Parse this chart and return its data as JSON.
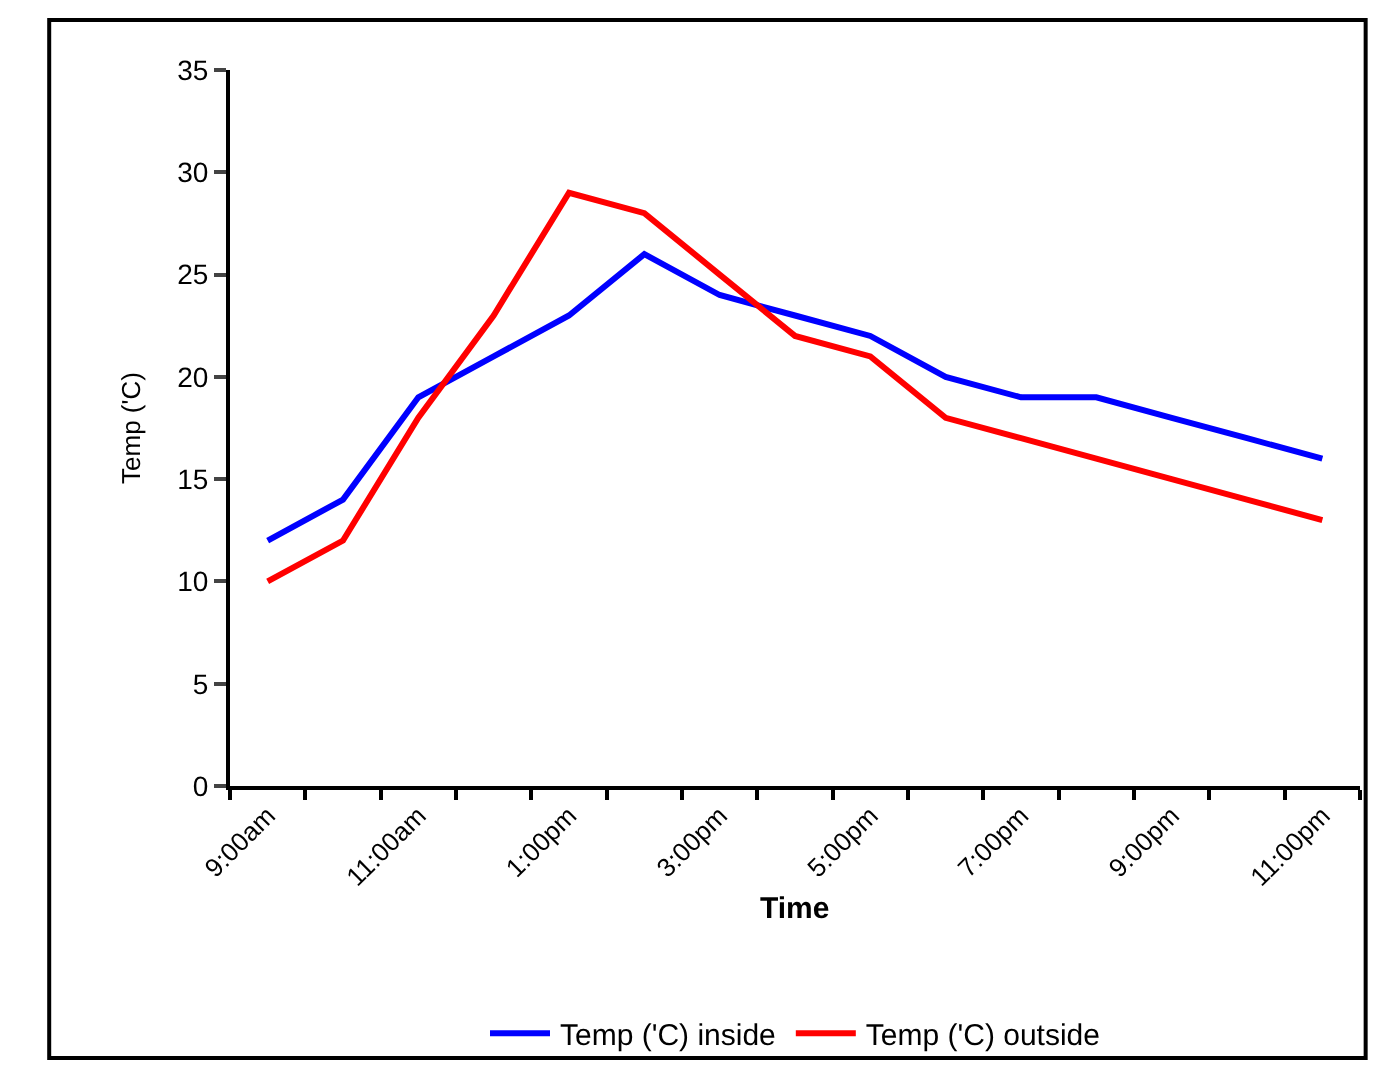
{
  "chart_data": {
    "type": "line",
    "xlabel": "Time",
    "ylabel": "Temp ('C)",
    "categories": [
      "9:00am",
      null,
      "11:00am",
      null,
      "1:00pm",
      null,
      "3:00pm",
      null,
      "5:00pm",
      null,
      "7:00pm",
      null,
      "9:00pm",
      null,
      "11:00pm"
    ],
    "series": [
      {
        "name": "Temp ('C) inside",
        "color": "#0000ff",
        "values": [
          12,
          14,
          19,
          21,
          23,
          26,
          24,
          23,
          22,
          20,
          19,
          19,
          18,
          17,
          16
        ]
      },
      {
        "name": "Temp ('C) outside",
        "color": "#ff0000",
        "values": [
          10,
          12,
          18,
          23,
          29,
          28,
          25,
          22,
          21,
          18,
          17,
          16,
          15,
          14,
          13
        ]
      }
    ],
    "ylim": [
      0,
      35
    ],
    "yticks": [
      0,
      5,
      10,
      15,
      20,
      25,
      30,
      35
    ],
    "legend": "bottom",
    "marker": "none",
    "line_style": "solid"
  }
}
